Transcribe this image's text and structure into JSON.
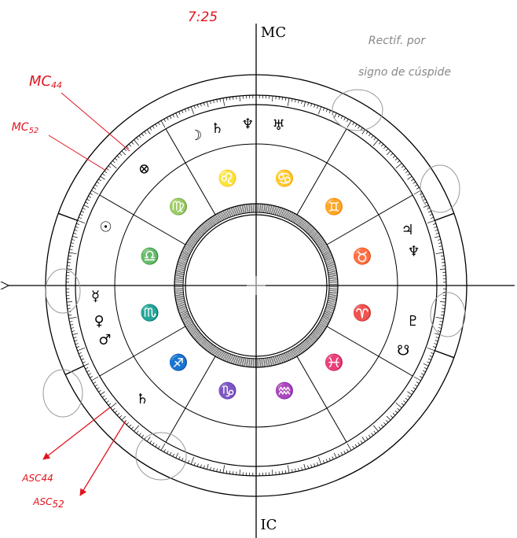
{
  "time": "7:25",
  "axes": {
    "top": "MC",
    "bottom": "IC"
  },
  "note": [
    "Rectif. por",
    "signo de cúspide"
  ],
  "annotations": [
    {
      "label": "MC",
      "sub": "44"
    },
    {
      "label": "MC",
      "sub": "52"
    },
    {
      "label": "ASC",
      "sub": "44"
    },
    {
      "label": "ASC",
      "sub": "52"
    }
  ],
  "signs": [
    "♉",
    "♊",
    "♋",
    "♌",
    "♍",
    "♎",
    "♏",
    "♐",
    "♑",
    "♒",
    "♓",
    "♈"
  ],
  "planets": [
    "♃",
    "♆",
    "♅",
    "♄",
    "☽",
    "⊗",
    "☉",
    "☿",
    "♀",
    "♂",
    "♄",
    "☋",
    "♇",
    "♆"
  ]
}
